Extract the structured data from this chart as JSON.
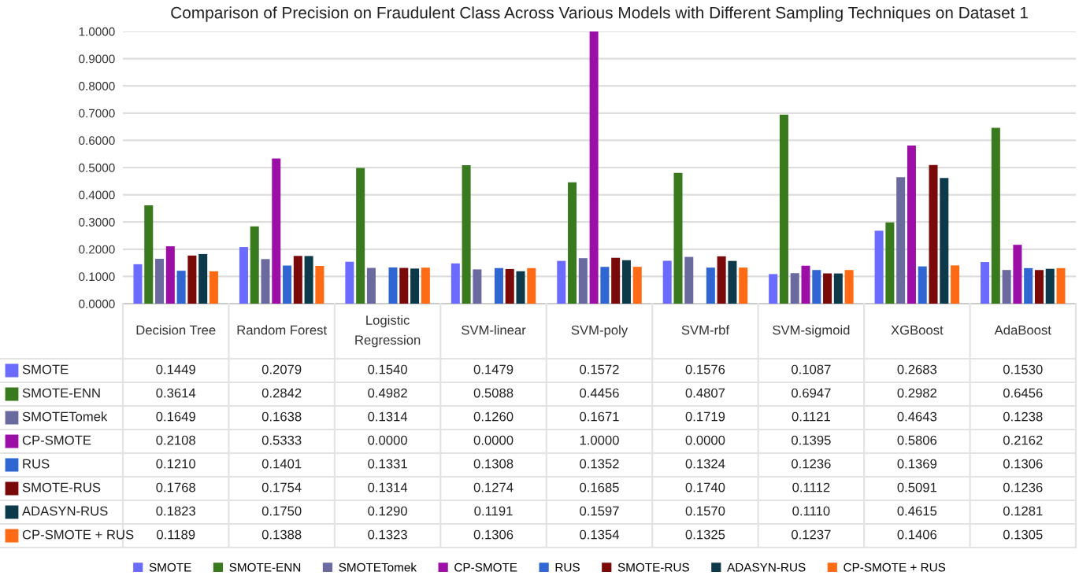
{
  "chart_data": {
    "type": "bar",
    "title": "Comparison of Precision on Fraudulent Class Across Various Models with Different Sampling Techniques on Dataset 1",
    "categories": [
      "Decision Tree",
      "Random Forest",
      "Logistic Regression",
      "SVM-linear",
      "SVM-poly",
      "SVM-rbf",
      "SVM-sigmoid",
      "XGBoost",
      "AdaBoost"
    ],
    "series": [
      {
        "name": "SMOTE",
        "color": "#6b6bff",
        "values": [
          0.1449,
          0.2079,
          0.154,
          0.1479,
          0.1572,
          0.1576,
          0.1087,
          0.2683,
          0.153
        ],
        "value_labels": [
          "0.1449",
          "0.2079",
          "0.1540",
          "0.1479",
          "0.1572",
          "0.1576",
          "0.1087",
          "0.2683",
          "0.1530"
        ]
      },
      {
        "name": "SMOTE-ENN",
        "color": "#3a7a1e",
        "values": [
          0.3614,
          0.2842,
          0.4982,
          0.5088,
          0.4456,
          0.4807,
          0.6947,
          0.2982,
          0.6456
        ],
        "value_labels": [
          "0.3614",
          "0.2842",
          "0.4982",
          "0.5088",
          "0.4456",
          "0.4807",
          "0.6947",
          "0.2982",
          "0.6456"
        ]
      },
      {
        "name": "SMOTETomek",
        "color": "#6b6a9e",
        "values": [
          0.1649,
          0.1638,
          0.1314,
          0.126,
          0.1671,
          0.1719,
          0.1121,
          0.4643,
          0.1238
        ],
        "value_labels": [
          "0.1649",
          "0.1638",
          "0.1314",
          "0.1260",
          "0.1671",
          "0.1719",
          "0.1121",
          "0.4643",
          "0.1238"
        ]
      },
      {
        "name": "CP-SMOTE",
        "color": "#9c0fa6",
        "values": [
          0.2108,
          0.5333,
          0.0,
          0.0,
          1.0,
          0.0,
          0.1395,
          0.5806,
          0.2162
        ],
        "value_labels": [
          "0.2108",
          "0.5333",
          "0.0000",
          "0.0000",
          "1.0000",
          "0.0000",
          "0.1395",
          "0.5806",
          "0.2162"
        ]
      },
      {
        "name": "RUS",
        "color": "#2f66d1",
        "values": [
          0.121,
          0.1401,
          0.1331,
          0.1308,
          0.1352,
          0.1324,
          0.1236,
          0.1369,
          0.1306
        ],
        "value_labels": [
          "0.1210",
          "0.1401",
          "0.1331",
          "0.1308",
          "0.1352",
          "0.1324",
          "0.1236",
          "0.1369",
          "0.1306"
        ]
      },
      {
        "name": "SMOTE-RUS",
        "color": "#7a0a0a",
        "values": [
          0.1768,
          0.1754,
          0.1314,
          0.1274,
          0.1685,
          0.174,
          0.1112,
          0.5091,
          0.1236
        ],
        "value_labels": [
          "0.1768",
          "0.1754",
          "0.1314",
          "0.1274",
          "0.1685",
          "0.1740",
          "0.1112",
          "0.5091",
          "0.1236"
        ]
      },
      {
        "name": "ADASYN-RUS",
        "color": "#0d3a4a",
        "values": [
          0.1823,
          0.175,
          0.129,
          0.1191,
          0.1597,
          0.157,
          0.111,
          0.4615,
          0.1281
        ],
        "value_labels": [
          "0.1823",
          "0.1750",
          "0.1290",
          "0.1191",
          "0.1597",
          "0.1570",
          "0.1110",
          "0.4615",
          "0.1281"
        ]
      },
      {
        "name": "CP-SMOTE + RUS",
        "color": "#ff6a14",
        "values": [
          0.1189,
          0.1388,
          0.1323,
          0.1306,
          0.1354,
          0.1325,
          0.1237,
          0.1406,
          0.1305
        ],
        "value_labels": [
          "0.1189",
          "0.1388",
          "0.1323",
          "0.1306",
          "0.1354",
          "0.1325",
          "0.1237",
          "0.1406",
          "0.1305"
        ]
      }
    ],
    "ylim": [
      0,
      1
    ],
    "yticks": [
      {
        "value": 0,
        "label": "0.0000"
      },
      {
        "value": 0.1,
        "label": "0.1000"
      },
      {
        "value": 0.2,
        "label": "0.2000"
      },
      {
        "value": 0.3,
        "label": "0.3000"
      },
      {
        "value": 0.4,
        "label": "0.4000"
      },
      {
        "value": 0.5,
        "label": "0.5000"
      },
      {
        "value": 0.6,
        "label": "0.6000"
      },
      {
        "value": 0.7,
        "label": "0.7000"
      },
      {
        "value": 0.8,
        "label": "0.8000"
      },
      {
        "value": 0.9,
        "label": "0.9000"
      },
      {
        "value": 1.0,
        "label": "1.0000"
      }
    ],
    "grid": "y",
    "legend": "bottom"
  }
}
